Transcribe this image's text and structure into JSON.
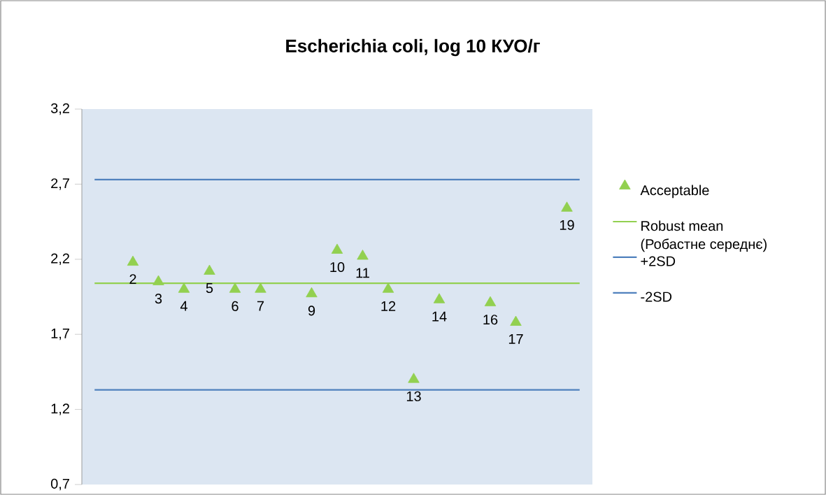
{
  "chart_data": {
    "type": "scatter",
    "title": "Escherichia coli, log 10 КУО/г",
    "categories": [
      null,
      null,
      null,
      null,
      null,
      null,
      null,
      null,
      null,
      null,
      null,
      null,
      null,
      null,
      null,
      null,
      null,
      null,
      null
    ],
    "ylim": [
      0.7,
      3.2
    ],
    "yticks": [
      {
        "value": 0.7,
        "label": "0,7"
      },
      {
        "value": 1.2,
        "label": "1,2"
      },
      {
        "value": 1.7,
        "label": "1,7"
      },
      {
        "value": 2.2,
        "label": "2,2"
      },
      {
        "value": 2.7,
        "label": "2,7"
      },
      {
        "value": 3.2,
        "label": "3,2"
      }
    ],
    "tick_labels": "y",
    "legend": "right",
    "marker": "triangle",
    "grid": false,
    "series": [
      {
        "name": "Acceptable",
        "color": "#92d050",
        "values": [
          null,
          2.18,
          2.05,
          2.0,
          2.12,
          2.0,
          2.0,
          null,
          1.97,
          2.26,
          2.22,
          2.0,
          1.4,
          1.93,
          null,
          1.91,
          1.78,
          null,
          2.54
        ]
      }
    ],
    "ref_lines": [
      {
        "axis": "y",
        "value": 2.04,
        "label": "Robust mean (Робастне середнє)",
        "color": "#92d050"
      },
      {
        "axis": "y",
        "value": 2.73,
        "label": "+2SD",
        "color": "#4f81bd"
      },
      {
        "axis": "y",
        "value": 1.33,
        "label": "-2SD",
        "color": "#4f81bd"
      }
    ],
    "annotations": [
      "2",
      "3",
      "4",
      "5",
      "6",
      "7",
      "9",
      "10",
      "11",
      "12",
      "13",
      "14",
      "16",
      "17",
      "19"
    ]
  }
}
